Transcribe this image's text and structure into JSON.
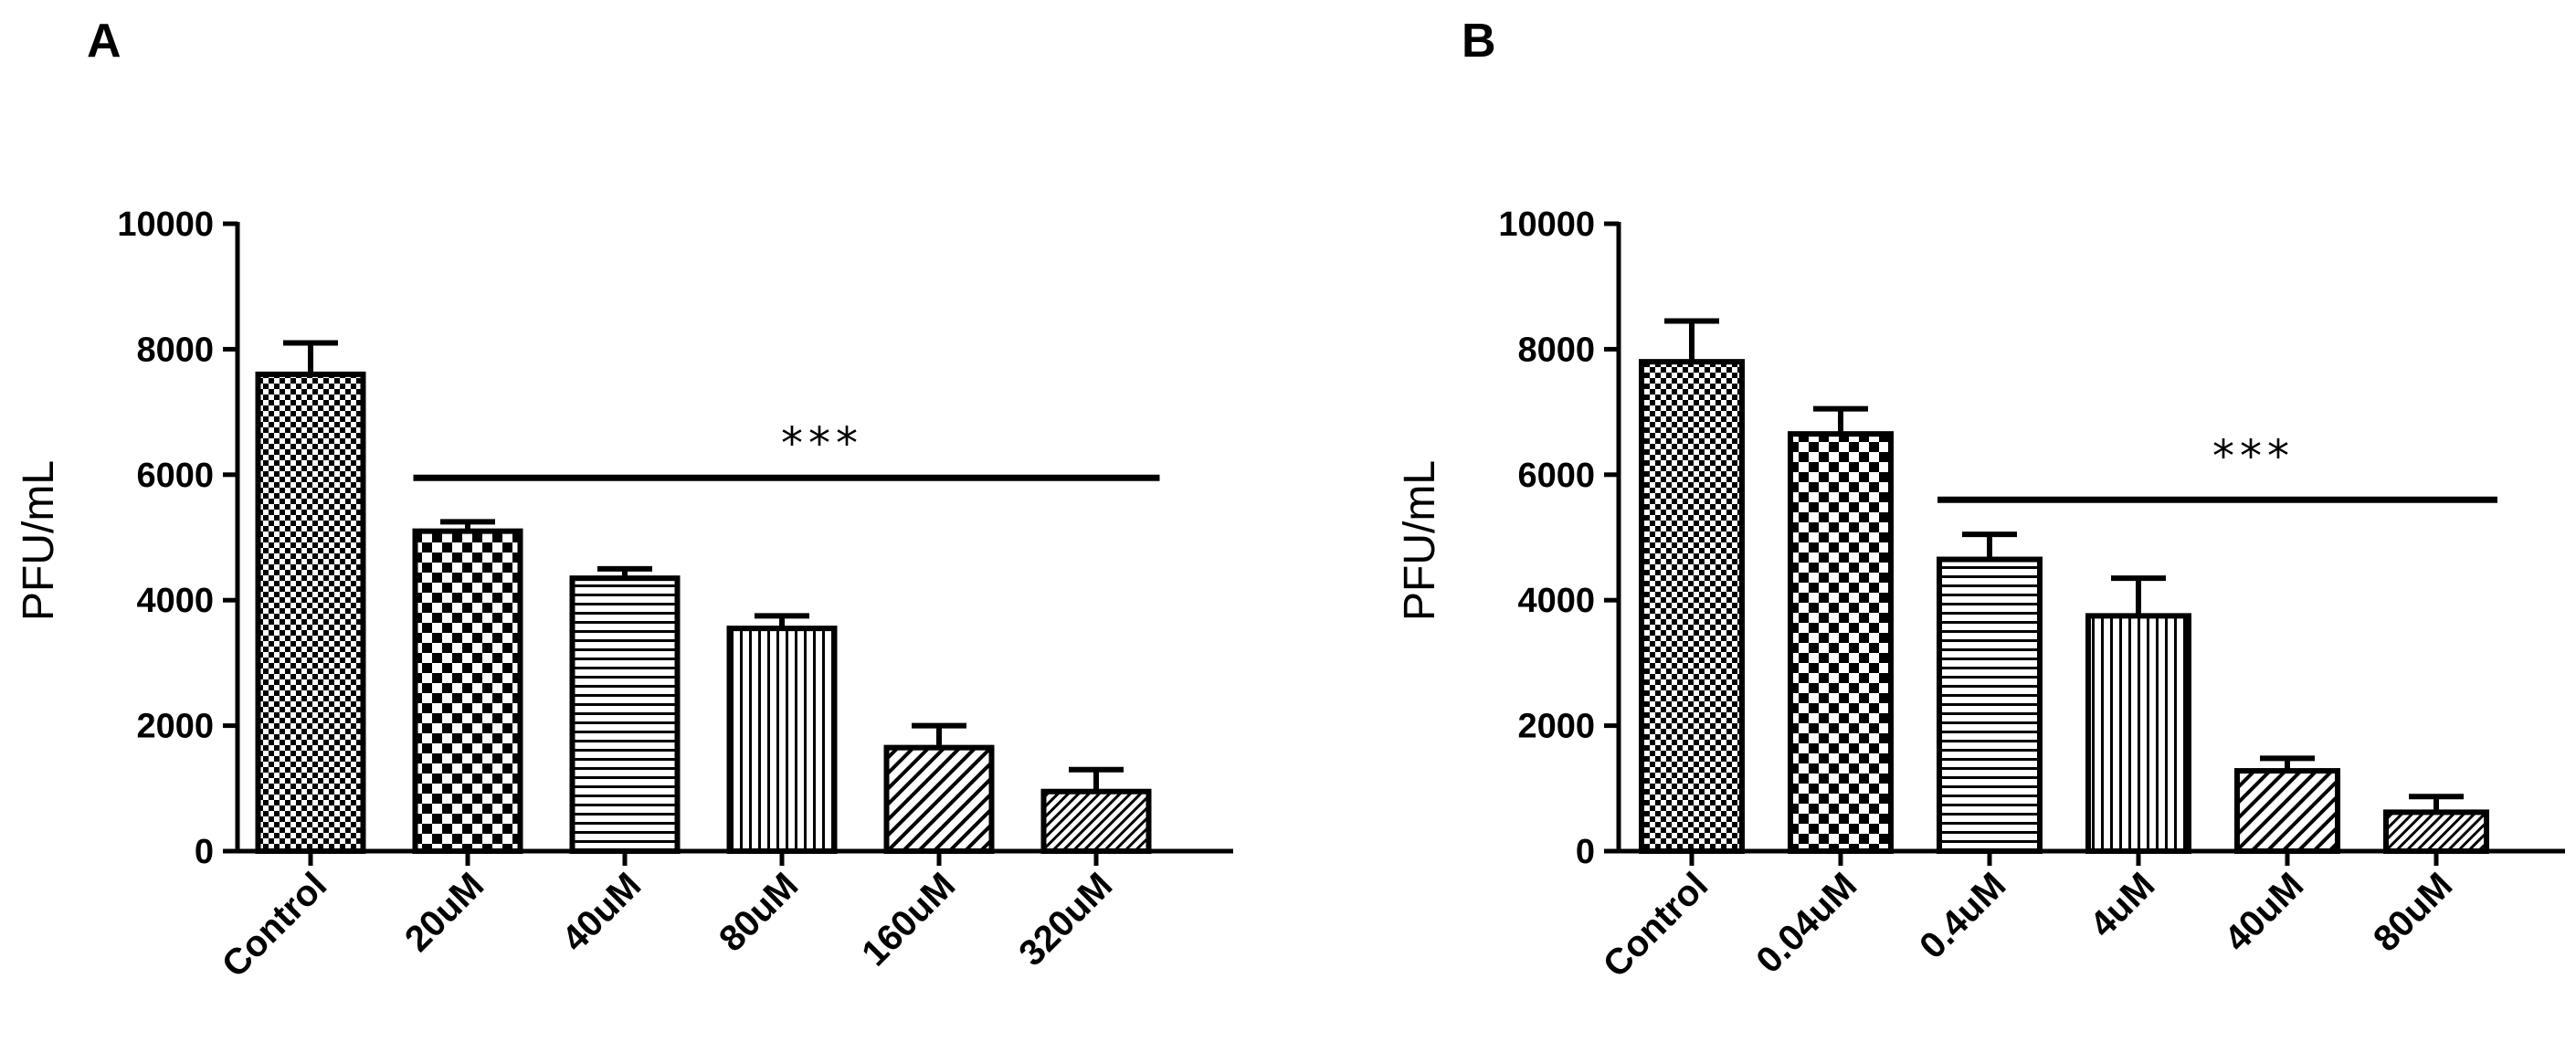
{
  "chart_data": [
    {
      "panel": "A",
      "type": "bar",
      "title": "",
      "xlabel": "",
      "ylabel": "PFU/mL",
      "ylim": [
        0,
        10000
      ],
      "yticks": [
        "0",
        "2000",
        "4000",
        "6000",
        "8000",
        "10000"
      ],
      "categories": [
        "Control",
        "20uM",
        "40uM",
        "80uM",
        "160uM",
        "320uM"
      ],
      "values": [
        7600,
        5100,
        4350,
        3550,
        1650,
        950
      ],
      "errors": [
        500,
        150,
        150,
        200,
        350,
        350
      ],
      "patterns": [
        "fine-check",
        "check",
        "horizontal",
        "vertical",
        "diagonal",
        "diagonal-fine"
      ],
      "significance": {
        "label": "***",
        "from": "20uM",
        "to": "320uM",
        "level": 5950
      }
    },
    {
      "panel": "B",
      "type": "bar",
      "title": "",
      "xlabel": "",
      "ylabel": "PFU/mL",
      "ylim": [
        0,
        10000
      ],
      "yticks": [
        "0",
        "2000",
        "4000",
        "6000",
        "8000",
        "10000"
      ],
      "categories": [
        "Control",
        "0.04uM",
        "0.4uM",
        "4uM",
        "40uM",
        "80uM"
      ],
      "values": [
        7800,
        6650,
        4650,
        3750,
        1280,
        620
      ],
      "errors": [
        650,
        400,
        400,
        600,
        200,
        250
      ],
      "patterns": [
        "fine-check",
        "check",
        "horizontal",
        "vertical",
        "diagonal",
        "diagonal-fine"
      ],
      "significance": {
        "label": "***",
        "from": "0.4uM",
        "to": "80uM",
        "level": 5600
      }
    }
  ]
}
